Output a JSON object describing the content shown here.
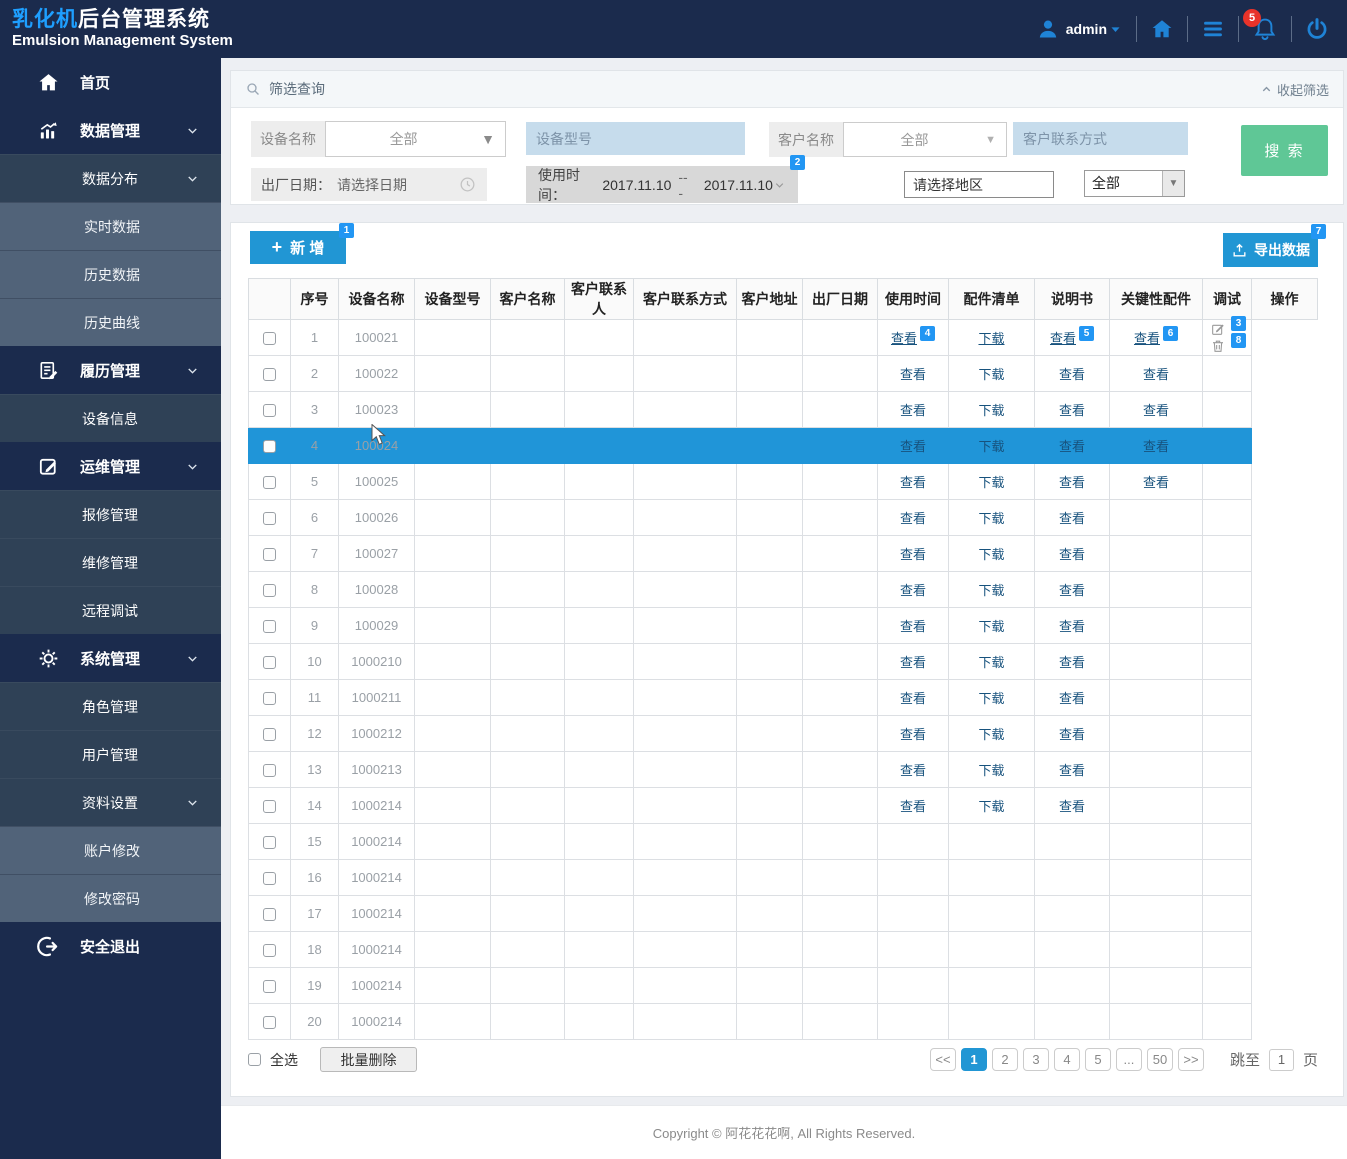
{
  "header": {
    "title_highlight": "乳化机",
    "title_rest": "后台管理系统",
    "subtitle": "Emulsion Management System",
    "user": "admin",
    "notification_count": "5"
  },
  "sidebar": {
    "items": [
      {
        "key": "home",
        "label": "首页",
        "level": 1,
        "icon": "home-icon",
        "chevron": false
      },
      {
        "key": "data-management",
        "label": "数据管理",
        "level": 1,
        "icon": "chart-icon",
        "chevron": true
      },
      {
        "key": "data-distribution",
        "label": "数据分布",
        "level": 2,
        "chevron": true
      },
      {
        "key": "realtime-data",
        "label": "实时数据",
        "level": 3
      },
      {
        "key": "history-data",
        "label": "历史数据",
        "level": 3
      },
      {
        "key": "history-curve",
        "label": "历史曲线",
        "level": 3
      },
      {
        "key": "record-management",
        "label": "履历管理",
        "level": 1,
        "icon": "clipboard-icon",
        "chevron": true
      },
      {
        "key": "device-info",
        "label": "设备信息",
        "level": 2
      },
      {
        "key": "ops-management",
        "label": "运维管理",
        "level": 1,
        "icon": "edit-square-icon",
        "chevron": true
      },
      {
        "key": "repair-management",
        "label": "报修管理",
        "level": 2
      },
      {
        "key": "maintenance-management",
        "label": "维修管理",
        "level": 2
      },
      {
        "key": "remote-debug",
        "label": "远程调试",
        "level": 2
      },
      {
        "key": "system-management",
        "label": "系统管理",
        "level": 1,
        "icon": "gear-icon",
        "chevron": true
      },
      {
        "key": "role-management",
        "label": "角色管理",
        "level": 2
      },
      {
        "key": "user-management",
        "label": "用户管理",
        "level": 2
      },
      {
        "key": "profile-settings",
        "label": "资料设置",
        "level": 2,
        "chevron": true
      },
      {
        "key": "account-edit",
        "label": "账户修改",
        "level": 3
      },
      {
        "key": "change-password",
        "label": "修改密码",
        "level": 3
      },
      {
        "key": "logout",
        "label": "安全退出",
        "level": 1,
        "icon": "logout-icon",
        "chevron": false
      }
    ]
  },
  "filter": {
    "panel_title": "筛选查询",
    "collapse_label": "收起筛选",
    "device_name_label": "设备名称",
    "device_name_value": "全部",
    "device_model_placeholder": "设备型号",
    "customer_name_label": "客户名称",
    "customer_name_value": "全部",
    "customer_contact_placeholder": "客户联系方式",
    "factory_date_label": "出厂日期：",
    "factory_date_placeholder": "请选择日期",
    "usage_time_label": "使用时间：",
    "usage_start": "2017.11.10",
    "usage_separator": "---",
    "usage_end": "2017.11.10",
    "usage_badge": "2",
    "region_placeholder": "请选择地区",
    "region_all_value": "全部",
    "search_button": "搜 索"
  },
  "toolbar": {
    "add_label": "新 增",
    "add_badge": "1",
    "export_label": "导出数据",
    "export_badge": "7"
  },
  "table": {
    "headers": [
      "",
      "序号",
      "设备名称",
      "设备型号",
      "客户名称",
      "客户联系人",
      "客户联系方式",
      "客户地址",
      "出厂日期",
      "使用时间",
      "配件清单",
      "说明书",
      "关键性配件",
      "调试",
      "操作"
    ],
    "link_view": "查看",
    "link_download": "下载",
    "rows": [
      {
        "no": "1",
        "device": "100021",
        "parts": true,
        "manual": true,
        "key": true,
        "debug": true,
        "ops": true,
        "underline": true,
        "badges": {
          "parts": "4",
          "key": "5",
          "debug": "6",
          "edit": "3",
          "del": "8"
        }
      },
      {
        "no": "2",
        "device": "100022",
        "parts": true,
        "manual": true,
        "key": true,
        "debug": true
      },
      {
        "no": "3",
        "device": "100023",
        "parts": true,
        "manual": true,
        "key": true,
        "debug": true
      },
      {
        "no": "4",
        "device": "100024",
        "parts": true,
        "manual": true,
        "key": true,
        "debug": true,
        "selected": true
      },
      {
        "no": "5",
        "device": "100025",
        "parts": true,
        "manual": true,
        "key": true,
        "debug": true
      },
      {
        "no": "6",
        "device": "100026",
        "parts": true,
        "manual": true,
        "key": true
      },
      {
        "no": "7",
        "device": "100027",
        "parts": true,
        "manual": true,
        "key": true
      },
      {
        "no": "8",
        "device": "100028",
        "parts": true,
        "manual": true,
        "key": true
      },
      {
        "no": "9",
        "device": "100029",
        "parts": true,
        "manual": true,
        "key": true
      },
      {
        "no": "10",
        "device": "1000210",
        "parts": true,
        "manual": true,
        "key": true
      },
      {
        "no": "11",
        "device": "1000211",
        "parts": true,
        "manual": true,
        "key": true
      },
      {
        "no": "12",
        "device": "1000212",
        "parts": true,
        "manual": true,
        "key": true
      },
      {
        "no": "13",
        "device": "1000213",
        "parts": true,
        "manual": true,
        "key": true
      },
      {
        "no": "14",
        "device": "1000214",
        "parts": true,
        "manual": true,
        "key": true
      },
      {
        "no": "15",
        "device": "1000214"
      },
      {
        "no": "16",
        "device": "1000214"
      },
      {
        "no": "17",
        "device": "1000214"
      },
      {
        "no": "18",
        "device": "1000214"
      },
      {
        "no": "19",
        "device": "1000214"
      },
      {
        "no": "20",
        "device": "1000214"
      }
    ]
  },
  "tablefoot": {
    "select_all": "全选",
    "batch_delete": "批量删除"
  },
  "pagination": {
    "prev": "<<",
    "pages": [
      "1",
      "2",
      "3",
      "4",
      "5",
      "...",
      "50"
    ],
    "next": ">>",
    "active": "1",
    "jump_label": "跳至",
    "jump_value": "1",
    "jump_suffix": "页"
  },
  "footer": {
    "copyright": "Copyright © 阿花花花啊, All Rights Reserved."
  },
  "colors": {
    "navy": "#1b2b4d",
    "submenu_l2": "#2f4156",
    "submenu_l3": "#516379",
    "accent_blue": "#2196d4",
    "badge_blue": "#2296f3",
    "selected_row": "#2095d8",
    "search_green": "#5fc796",
    "input_blue": "#c6dcec",
    "link_blue": "#17527d",
    "notification_red": "#e8332a"
  }
}
